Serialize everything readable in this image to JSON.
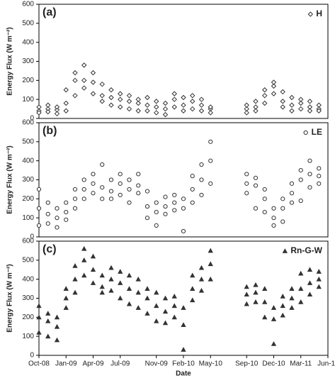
{
  "chart_data": [
    {
      "type": "scatter",
      "label": "(a)",
      "ylabel": "Energy Flux (W m⁻²)",
      "xlim": [
        "2008-10",
        "2011-06"
      ],
      "ylim": [
        0,
        600
      ],
      "yticks": [
        0,
        100,
        200,
        300,
        400,
        500,
        600
      ],
      "x": [
        "2008-10",
        "2008-10",
        "2008-10",
        "2008-11",
        "2008-11",
        "2008-11",
        "2008-12",
        "2008-12",
        "2008-12",
        "2009-01",
        "2009-01",
        "2009-01",
        "2009-02",
        "2009-02",
        "2009-02",
        "2009-03",
        "2009-03",
        "2009-03",
        "2009-04",
        "2009-04",
        "2009-04",
        "2009-05",
        "2009-05",
        "2009-05",
        "2009-06",
        "2009-06",
        "2009-06",
        "2009-07",
        "2009-07",
        "2009-07",
        "2009-08",
        "2009-08",
        "2009-08",
        "2009-09",
        "2009-09",
        "2009-09",
        "2009-10",
        "2009-10",
        "2009-10",
        "2009-11",
        "2009-11",
        "2009-11",
        "2009-12",
        "2009-12",
        "2009-12",
        "2010-01",
        "2010-01",
        "2010-01",
        "2010-02",
        "2010-02",
        "2010-02",
        "2010-03",
        "2010-03",
        "2010-03",
        "2010-04",
        "2010-04",
        "2010-04",
        "2010-05",
        "2010-05",
        "2010-05",
        "2010-09",
        "2010-09",
        "2010-09",
        "2010-10",
        "2010-10",
        "2010-10",
        "2010-11",
        "2010-11",
        "2010-11",
        "2010-12",
        "2010-12",
        "2010-12",
        "2011-01",
        "2011-01",
        "2011-01",
        "2011-02",
        "2011-02",
        "2011-02",
        "2011-03",
        "2011-03",
        "2011-03",
        "2011-04",
        "2011-04",
        "2011-04",
        "2011-05",
        "2011-05",
        "2011-05"
      ],
      "series": [
        {
          "name": "H",
          "color": "#333333",
          "marker": "diamond",
          "values": [
            40,
            60,
            30,
            50,
            70,
            35,
            45,
            25,
            60,
            80,
            150,
            40,
            200,
            240,
            120,
            280,
            200,
            160,
            240,
            190,
            130,
            180,
            120,
            90,
            110,
            70,
            150,
            100,
            60,
            130,
            90,
            50,
            120,
            80,
            40,
            100,
            70,
            110,
            40,
            60,
            90,
            30,
            50,
            80,
            20,
            100,
            60,
            130,
            110,
            70,
            40,
            90,
            50,
            120,
            70,
            40,
            100,
            50,
            30,
            60,
            50,
            70,
            30,
            60,
            90,
            40,
            120,
            80,
            150,
            170,
            130,
            190,
            140,
            90,
            60,
            110,
            70,
            40,
            80,
            50,
            100,
            60,
            40,
            90,
            70,
            50,
            40
          ]
        }
      ]
    },
    {
      "type": "scatter",
      "label": "(b)",
      "ylabel": "Energy Flux (W m⁻²)",
      "xlim": [
        "2008-10",
        "2011-06"
      ],
      "ylim": [
        0,
        600
      ],
      "yticks": [
        0,
        100,
        200,
        300,
        400,
        500,
        600
      ],
      "x": [
        "2008-10",
        "2008-10",
        "2008-10",
        "2008-11",
        "2008-11",
        "2008-11",
        "2008-12",
        "2008-12",
        "2008-12",
        "2009-01",
        "2009-01",
        "2009-01",
        "2009-02",
        "2009-02",
        "2009-02",
        "2009-03",
        "2009-03",
        "2009-03",
        "2009-04",
        "2009-04",
        "2009-04",
        "2009-05",
        "2009-05",
        "2009-05",
        "2009-06",
        "2009-06",
        "2009-06",
        "2009-07",
        "2009-07",
        "2009-07",
        "2009-08",
        "2009-08",
        "2009-08",
        "2009-09",
        "2009-09",
        "2009-09",
        "2009-10",
        "2009-10",
        "2009-10",
        "2009-11",
        "2009-11",
        "2009-11",
        "2009-12",
        "2009-12",
        "2009-12",
        "2010-01",
        "2010-01",
        "2010-01",
        "2010-02",
        "2010-02",
        "2010-02",
        "2010-03",
        "2010-03",
        "2010-03",
        "2010-04",
        "2010-04",
        "2010-04",
        "2010-05",
        "2010-05",
        "2010-05",
        "2010-09",
        "2010-09",
        "2010-09",
        "2010-10",
        "2010-10",
        "2010-10",
        "2010-11",
        "2010-11",
        "2010-11",
        "2010-12",
        "2010-12",
        "2010-12",
        "2011-01",
        "2011-01",
        "2011-01",
        "2011-02",
        "2011-02",
        "2011-02",
        "2011-03",
        "2011-03",
        "2011-03",
        "2011-04",
        "2011-04",
        "2011-04",
        "2011-05",
        "2011-05",
        "2011-05"
      ],
      "series": [
        {
          "name": "LE",
          "color": "#333333",
          "marker": "circle",
          "values": [
            150,
            250,
            60,
            120,
            180,
            70,
            100,
            150,
            50,
            130,
            180,
            90,
            200,
            150,
            250,
            250,
            300,
            200,
            280,
            230,
            330,
            260,
            200,
            380,
            300,
            240,
            200,
            280,
            330,
            220,
            250,
            300,
            180,
            270,
            230,
            330,
            240,
            160,
            100,
            180,
            130,
            60,
            160,
            210,
            120,
            180,
            220,
            140,
            150,
            200,
            30,
            250,
            320,
            180,
            300,
            380,
            220,
            400,
            500,
            280,
            330,
            280,
            230,
            270,
            310,
            150,
            200,
            250,
            130,
            100,
            60,
            150,
            150,
            200,
            80,
            230,
            280,
            180,
            300,
            350,
            190,
            330,
            400,
            260,
            320,
            280,
            360
          ]
        }
      ]
    },
    {
      "type": "scatter",
      "label": "(c)",
      "ylabel": "Energy Flux (W m⁻²)",
      "xlabel": "Date",
      "xlim": [
        "2008-10",
        "2011-06"
      ],
      "ylim": [
        0,
        600
      ],
      "yticks": [
        0,
        100,
        200,
        300,
        400,
        500,
        600
      ],
      "xticks": [
        {
          "value": "2008-10",
          "label": "Oct-08"
        },
        {
          "value": "2009-01",
          "label": "Jan-09"
        },
        {
          "value": "2009-04",
          "label": "Apr-09"
        },
        {
          "value": "2009-07",
          "label": "Jul-09"
        },
        {
          "value": "2009-11",
          "label": "Nov-09"
        },
        {
          "value": "2010-02",
          "label": "Feb-10"
        },
        {
          "value": "2010-05",
          "label": "May-10"
        },
        {
          "value": "2010-09",
          "label": "Sep-10"
        },
        {
          "value": "2010-12",
          "label": "Dec-10"
        },
        {
          "value": "2011-03",
          "label": "Mar-11"
        },
        {
          "value": "2011-06",
          "label": "Jun-11"
        }
      ],
      "x": [
        "2008-10",
        "2008-10",
        "2008-10",
        "2008-11",
        "2008-11",
        "2008-11",
        "2008-12",
        "2008-12",
        "2008-12",
        "2009-01",
        "2009-01",
        "2009-01",
        "2009-02",
        "2009-02",
        "2009-02",
        "2009-03",
        "2009-03",
        "2009-03",
        "2009-04",
        "2009-04",
        "2009-04",
        "2009-05",
        "2009-05",
        "2009-05",
        "2009-06",
        "2009-06",
        "2009-06",
        "2009-07",
        "2009-07",
        "2009-07",
        "2009-08",
        "2009-08",
        "2009-08",
        "2009-09",
        "2009-09",
        "2009-09",
        "2009-10",
        "2009-10",
        "2009-10",
        "2009-11",
        "2009-11",
        "2009-11",
        "2009-12",
        "2009-12",
        "2009-12",
        "2010-01",
        "2010-01",
        "2010-01",
        "2010-02",
        "2010-02",
        "2010-02",
        "2010-03",
        "2010-03",
        "2010-03",
        "2010-04",
        "2010-04",
        "2010-04",
        "2010-05",
        "2010-05",
        "2010-05",
        "2010-09",
        "2010-09",
        "2010-09",
        "2010-10",
        "2010-10",
        "2010-10",
        "2010-11",
        "2010-11",
        "2010-11",
        "2010-12",
        "2010-12",
        "2010-12",
        "2011-01",
        "2011-01",
        "2011-01",
        "2011-02",
        "2011-02",
        "2011-02",
        "2011-03",
        "2011-03",
        "2011-03",
        "2011-04",
        "2011-04",
        "2011-04",
        "2011-05",
        "2011-05",
        "2011-05"
      ],
      "series": [
        {
          "name": "Rn-G-W",
          "color": "#333333",
          "marker": "triangle",
          "values": [
            200,
            120,
            260,
            180,
            100,
            220,
            150,
            80,
            200,
            300,
            250,
            350,
            400,
            330,
            470,
            500,
            420,
            560,
            450,
            380,
            520,
            420,
            360,
            330,
            400,
            340,
            460,
            380,
            300,
            440,
            350,
            270,
            420,
            330,
            250,
            400,
            300,
            220,
            350,
            260,
            180,
            330,
            230,
            170,
            300,
            260,
            200,
            310,
            250,
            160,
            30,
            350,
            290,
            420,
            400,
            340,
            460,
            480,
            400,
            550,
            320,
            360,
            270,
            330,
            280,
            370,
            280,
            200,
            350,
            250,
            190,
            60,
            260,
            210,
            310,
            300,
            250,
            350,
            350,
            280,
            430,
            380,
            320,
            450,
            400,
            360,
            440
          ]
        }
      ]
    }
  ]
}
